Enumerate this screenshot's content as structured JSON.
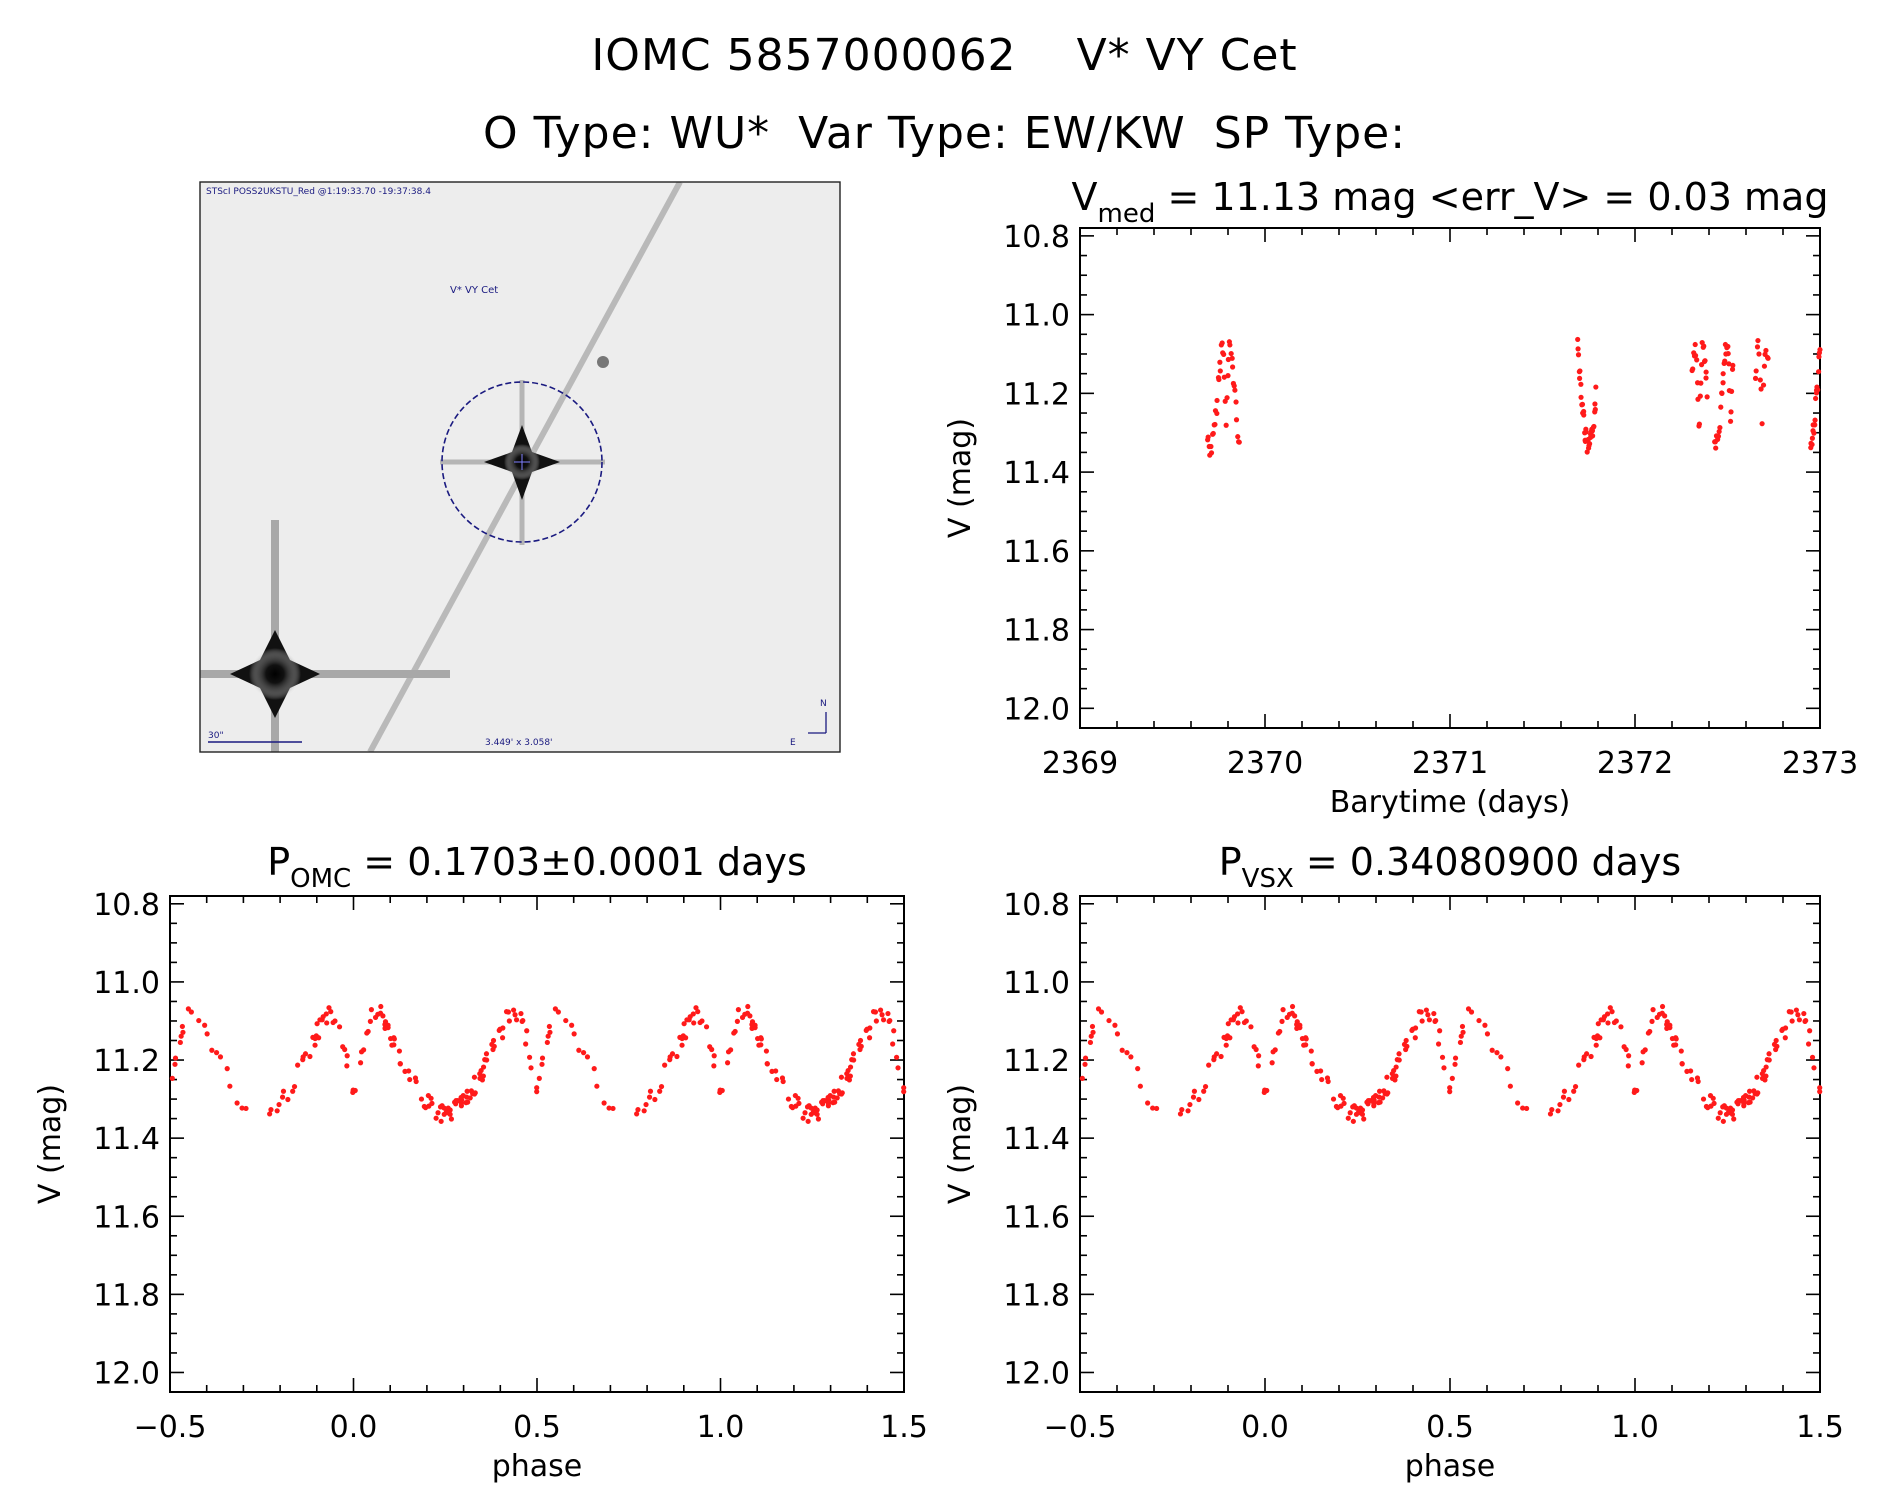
{
  "header": {
    "id_label": "IOMC 5857000062",
    "name_label": "V* VY Cet",
    "otype_label": "O Type: WU*",
    "vartype_label": "Var Type: EW/KW",
    "sptype_label": "SP Type:"
  },
  "finder": {
    "top_caption": "STScI POSS2UKSTU_Red @1:19:33.70 -19:37:38.4",
    "target_label": "V* VY Cet",
    "scale_label": "30\"",
    "fov_label": "3.449' x 3.058'",
    "north_label": "N",
    "east_label": "E"
  },
  "colors": {
    "points": "#ff1a1a",
    "finder_overlay": "#1a1a80"
  },
  "chart_data": [
    {
      "id": "lightcurve",
      "type": "scatter",
      "title_main": "V",
      "title_sub": "med",
      "title_rest": " = 11.13 mag <err_V> = 0.03 mag",
      "xlabel": "Barytime (days)",
      "ylabel": "V (mag)",
      "xlim": [
        2369,
        2373
      ],
      "ylim": [
        12.05,
        10.78
      ],
      "xticks": [
        2369,
        2370,
        2371,
        2372,
        2373
      ],
      "xtick_labels": [
        "2369",
        "2370",
        "2371",
        "2372",
        "2373"
      ],
      "yticks": [
        10.8,
        11.0,
        11.2,
        11.4,
        11.6,
        11.8,
        12.0
      ],
      "ytick_labels": [
        "10.8",
        "11.0",
        "11.2",
        "11.4",
        "11.6",
        "11.8",
        "12.0"
      ],
      "series": [
        {
          "name": "observations",
          "x": [],
          "y": []
        }
      ]
    },
    {
      "id": "phase_omc",
      "type": "scatter",
      "title_main": "P",
      "title_sub": "OMC",
      "title_rest": " = 0.1703±0.0001 days",
      "xlabel": "phase",
      "ylabel": "V (mag)",
      "period_days": 0.1703,
      "xlim": [
        -0.5,
        1.5
      ],
      "ylim": [
        12.05,
        10.78
      ],
      "xticks": [
        -0.5,
        0.0,
        0.5,
        1.0,
        1.5
      ],
      "xtick_labels": [
        "−0.5",
        "0.0",
        "0.5",
        "1.0",
        "1.5"
      ],
      "yticks": [
        10.8,
        11.0,
        11.2,
        11.4,
        11.6,
        11.8,
        12.0
      ],
      "ytick_labels": [
        "10.8",
        "11.0",
        "11.2",
        "11.4",
        "11.6",
        "11.8",
        "12.0"
      ],
      "series": [
        {
          "name": "folded",
          "phase": [],
          "y": []
        }
      ]
    },
    {
      "id": "phase_vsx",
      "type": "scatter",
      "title_main": "P",
      "title_sub": "VSX",
      "title_rest": " = 0.34080900 days",
      "xlabel": "phase",
      "ylabel": "V (mag)",
      "period_days": 0.340809,
      "xlim": [
        -0.5,
        1.5
      ],
      "ylim": [
        12.05,
        10.78
      ],
      "xticks": [
        -0.5,
        0.0,
        0.5,
        1.0,
        1.5
      ],
      "xtick_labels": [
        "−0.5",
        "0.0",
        "0.5",
        "1.0",
        "1.5"
      ],
      "yticks": [
        10.8,
        11.0,
        11.2,
        11.4,
        11.6,
        11.8,
        12.0
      ],
      "ytick_labels": [
        "10.8",
        "11.0",
        "11.2",
        "11.4",
        "11.6",
        "11.8",
        "12.0"
      ],
      "series": [
        {
          "name": "folded",
          "phase": [],
          "y": []
        }
      ]
    }
  ]
}
